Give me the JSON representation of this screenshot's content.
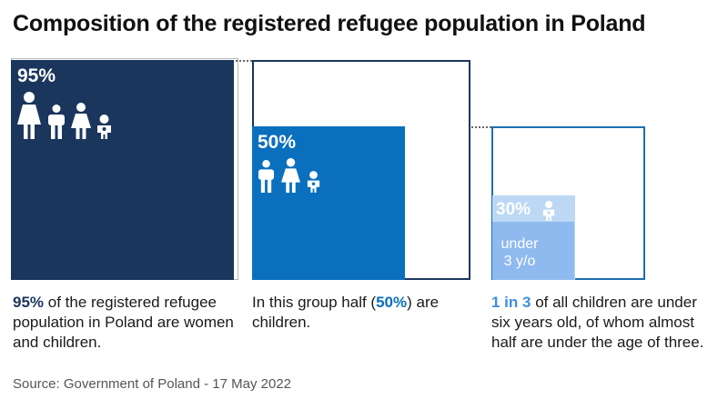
{
  "title": "Composition of the registered refugee population in Poland",
  "colors": {
    "navy": "#1b365d",
    "blue": "#0a6fbd",
    "outline_blue": "#1a6fb5",
    "light_blue_1": "#bcd8f4",
    "light_blue_2": "#8fbaf0"
  },
  "chart_data": [
    {
      "type": "bar",
      "label": "95%",
      "value": 95,
      "icons": [
        "woman-icon",
        "child-icon",
        "girl-icon",
        "baby-icon"
      ],
      "caption": {
        "highlight": "95%",
        "text": " of the registered refugee population in Poland are women and children."
      }
    },
    {
      "type": "bar",
      "label": "50%",
      "value": 50,
      "icons": [
        "child-icon",
        "girl-icon",
        "baby-icon"
      ],
      "caption": {
        "prefix": "In this group half (",
        "highlight": "50%",
        "suffix": ") are children."
      }
    },
    {
      "type": "bar",
      "label": "30%",
      "value": 30,
      "sub_label": "under 3 y/o",
      "sub_label_lines": [
        "under",
        "3 y/o"
      ],
      "icons": [
        "baby-icon"
      ],
      "caption": {
        "highlight": "1 in 3",
        "text": " of all children are under six years old, of whom almost half are under the age of three."
      }
    }
  ],
  "source": "Source: Government of Poland - 17 May 2022"
}
